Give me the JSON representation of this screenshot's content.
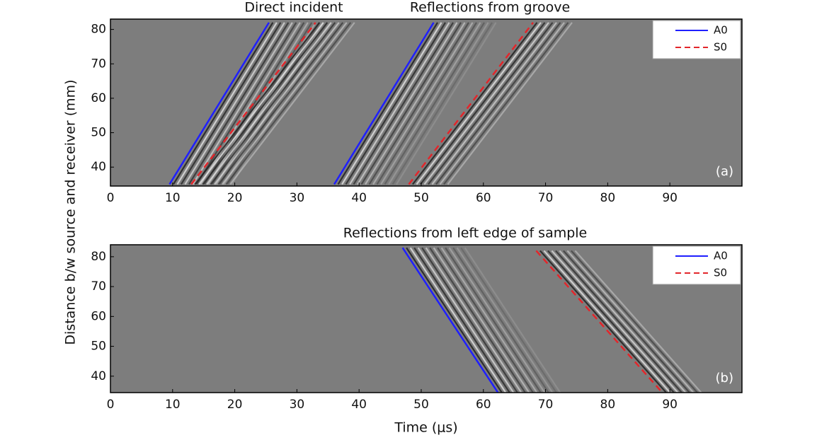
{
  "ylabel": "Distance b/w source and receiver (mm)",
  "chart_data": [
    {
      "type": "line",
      "annotations": [
        "Direct incident",
        "Reflections from groove"
      ],
      "panel_label": "(a)",
      "xlim": [
        0,
        101.6
      ],
      "ylim": [
        34.5,
        83
      ],
      "xticks": [
        0,
        10,
        20,
        30,
        40,
        50,
        60,
        70,
        80,
        90
      ],
      "yticks": [
        40,
        50,
        60,
        70,
        80
      ],
      "legend": "upper right",
      "series": [
        {
          "name": "A0",
          "color": "#1f1fff",
          "linestyle": "solid",
          "x": [
            9.5,
            25.5,
            null,
            36,
            52
          ],
          "values": [
            35,
            82,
            null,
            35,
            82
          ]
        },
        {
          "name": "S0",
          "color": "#e3262b",
          "linestyle": "dashed",
          "x": [
            13,
            33,
            null,
            48,
            68
          ],
          "values": [
            35,
            82,
            null,
            35,
            82
          ]
        }
      ]
    },
    {
      "type": "line",
      "annotations": [
        "Reflections from left edge of sample"
      ],
      "panel_label": "(b)",
      "xlabel": "Time (μs)",
      "xlim": [
        0,
        101.6
      ],
      "ylim": [
        34.5,
        84
      ],
      "xticks": [
        0,
        10,
        20,
        30,
        40,
        50,
        60,
        70,
        80,
        90
      ],
      "yticks": [
        40,
        50,
        60,
        70,
        80
      ],
      "legend": "upper right",
      "series": [
        {
          "name": "A0",
          "color": "#1f1fff",
          "linestyle": "solid",
          "x": [
            47,
            62.5
          ],
          "values": [
            83,
            34
          ]
        },
        {
          "name": "S0",
          "color": "#e3262b",
          "linestyle": "dashed",
          "x": [
            68.5,
            89
          ],
          "values": [
            82,
            34
          ]
        }
      ]
    }
  ]
}
